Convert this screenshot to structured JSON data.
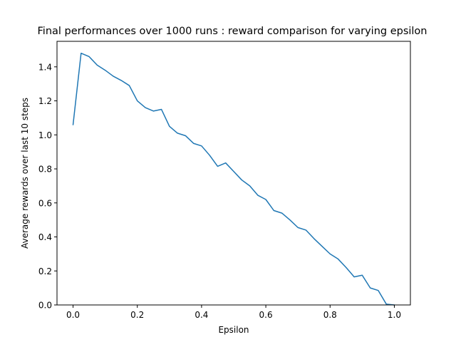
{
  "chart_data": {
    "type": "line",
    "title": "Final performances over 1000 runs : reward comparison for varying epsilon",
    "xlabel": "Epsilon",
    "ylabel": "Average rewards over last 10 steps",
    "xlim": [
      -0.05,
      1.05
    ],
    "ylim": [
      0.0,
      1.55
    ],
    "xticks": [
      0.0,
      0.2,
      0.4,
      0.6,
      0.8,
      1.0
    ],
    "xtick_labels": [
      "0.0",
      "0.2",
      "0.4",
      "0.6",
      "0.8",
      "1.0"
    ],
    "yticks": [
      0.0,
      0.2,
      0.4,
      0.6,
      0.8,
      1.0,
      1.2,
      1.4
    ],
    "ytick_labels": [
      "0.0",
      "0.2",
      "0.4",
      "0.6",
      "0.8",
      "1.0",
      "1.2",
      "1.4"
    ],
    "grid": false,
    "series": [
      {
        "color": "#1f77b4",
        "x": [
          0.0,
          0.025,
          0.05,
          0.075,
          0.1,
          0.125,
          0.15,
          0.175,
          0.2,
          0.225,
          0.25,
          0.275,
          0.3,
          0.325,
          0.35,
          0.375,
          0.4,
          0.425,
          0.45,
          0.475,
          0.5,
          0.525,
          0.55,
          0.575,
          0.6,
          0.625,
          0.65,
          0.675,
          0.7,
          0.725,
          0.75,
          0.775,
          0.8,
          0.825,
          0.85,
          0.875,
          0.9,
          0.925,
          0.95,
          0.975,
          1.0
        ],
        "y": [
          1.06,
          1.48,
          1.46,
          1.41,
          1.38,
          1.345,
          1.32,
          1.29,
          1.2,
          1.16,
          1.14,
          1.15,
          1.05,
          1.01,
          0.995,
          0.95,
          0.935,
          0.88,
          0.815,
          0.835,
          0.785,
          0.735,
          0.7,
          0.645,
          0.62,
          0.555,
          0.54,
          0.5,
          0.455,
          0.44,
          0.39,
          0.345,
          0.3,
          0.27,
          0.22,
          0.165,
          0.175,
          0.1,
          0.085,
          0.005,
          0.0
        ]
      }
    ]
  }
}
